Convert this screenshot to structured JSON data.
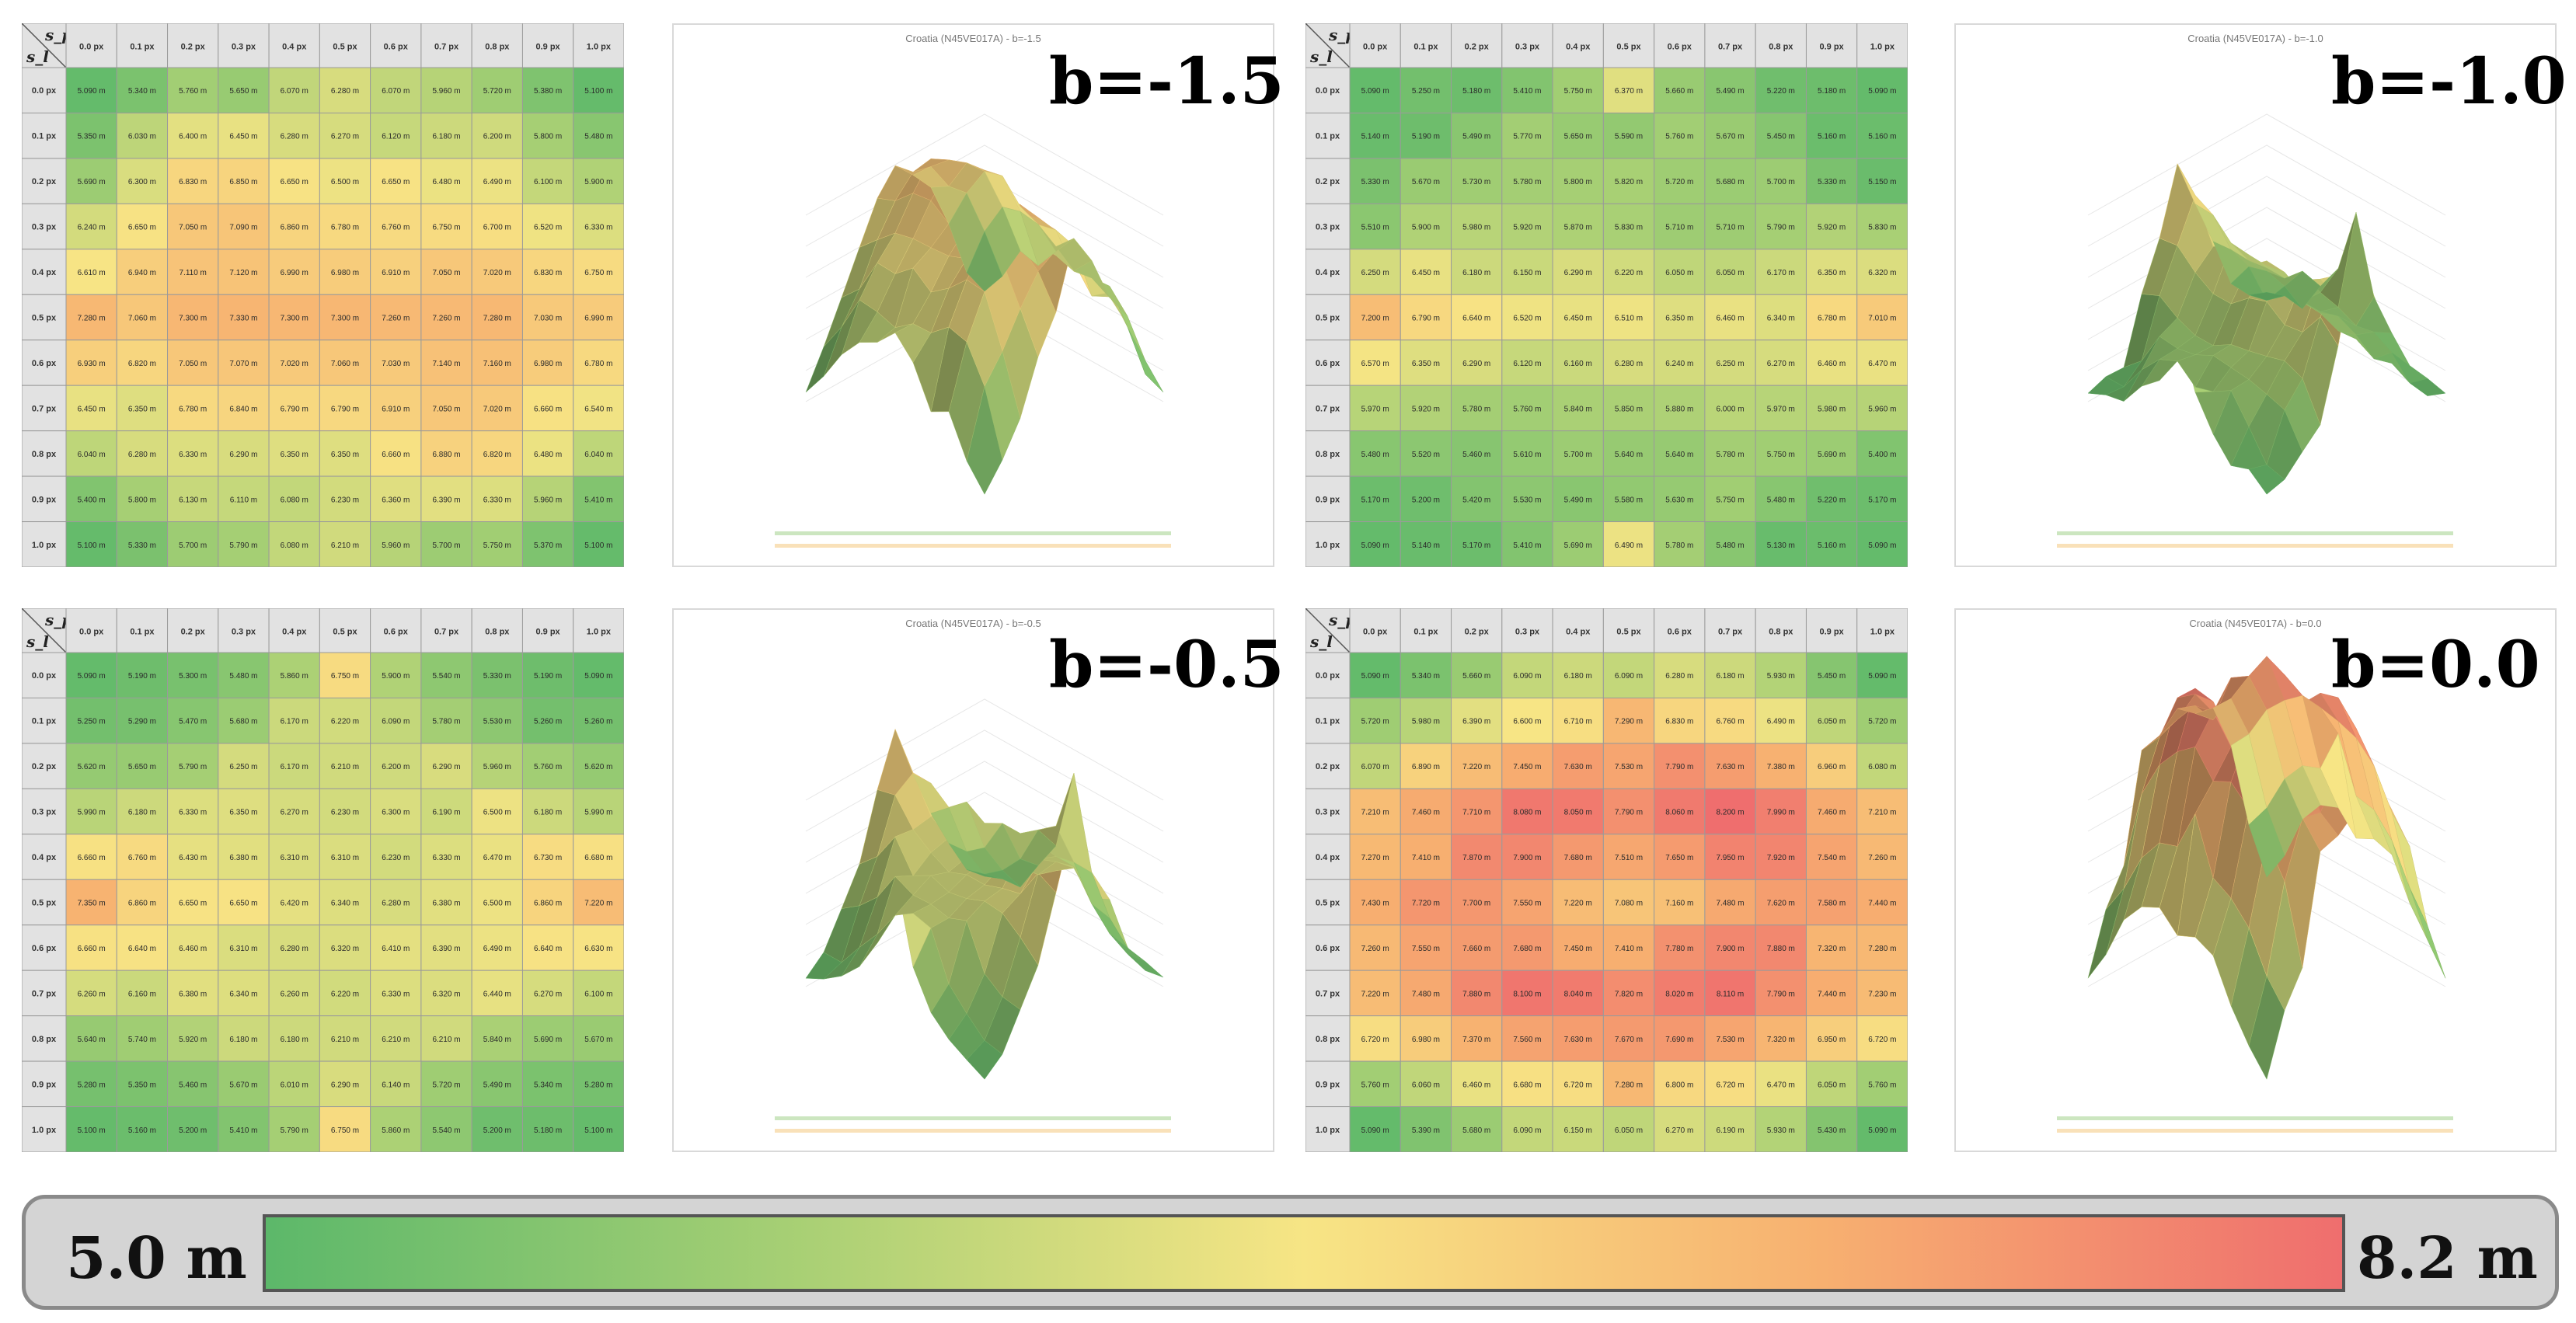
{
  "row_header_symbol": "s_p",
  "col_header_symbol": "s_l",
  "axis_labels": [
    "0.0 px",
    "0.1 px",
    "0.2 px",
    "0.3 px",
    "0.4 px",
    "0.5 px",
    "0.6 px",
    "0.7 px",
    "0.8 px",
    "0.9 px",
    "1.0 px"
  ],
  "legend": {
    "min_label": "5.0 m",
    "max_label": "8.2 m",
    "min_value": 5.0,
    "max_value": 8.2,
    "colors": [
      "#5cb86a",
      "#f7e585",
      "#ef6e6e"
    ]
  },
  "chart_data": [
    {
      "type": "heatmap",
      "label": "b=-1.5",
      "surface_title": "Croatia (N45VE017A) - b=-1.5",
      "values": [
        [
          5.09,
          5.34,
          5.76,
          5.65,
          6.07,
          6.28,
          6.07,
          5.96,
          5.72,
          5.38,
          5.1
        ],
        [
          5.35,
          6.03,
          6.4,
          6.45,
          6.28,
          6.27,
          6.12,
          6.18,
          6.2,
          5.8,
          5.48
        ],
        [
          5.69,
          6.3,
          6.83,
          6.85,
          6.65,
          6.5,
          6.65,
          6.48,
          6.49,
          6.1,
          5.9
        ],
        [
          6.24,
          6.65,
          7.05,
          7.09,
          6.86,
          6.78,
          6.76,
          6.75,
          6.7,
          6.52,
          6.33
        ],
        [
          6.61,
          6.94,
          7.11,
          7.12,
          6.99,
          6.98,
          6.91,
          7.05,
          7.02,
          6.83,
          6.75
        ],
        [
          7.28,
          7.06,
          7.3,
          7.33,
          7.3,
          7.3,
          7.26,
          7.26,
          7.28,
          7.03,
          6.99
        ],
        [
          6.93,
          6.82,
          7.05,
          7.07,
          7.02,
          7.06,
          7.03,
          7.14,
          7.16,
          6.98,
          6.78
        ],
        [
          6.45,
          6.35,
          6.78,
          6.84,
          6.79,
          6.79,
          6.91,
          7.05,
          7.02,
          6.66,
          6.54
        ],
        [
          6.04,
          6.28,
          6.33,
          6.29,
          6.35,
          6.35,
          6.66,
          6.88,
          6.82,
          6.48,
          6.04
        ],
        [
          5.4,
          5.8,
          6.13,
          6.11,
          6.08,
          6.23,
          6.36,
          6.39,
          6.33,
          5.96,
          5.41
        ],
        [
          5.1,
          5.33,
          5.7,
          5.79,
          6.08,
          6.21,
          5.96,
          5.7,
          5.75,
          5.37,
          5.1
        ]
      ]
    },
    {
      "type": "heatmap",
      "label": "b=-1.0",
      "surface_title": "Croatia (N45VE017A) - b=-1.0",
      "values": [
        [
          5.09,
          5.25,
          5.18,
          5.41,
          5.75,
          6.37,
          5.66,
          5.49,
          5.22,
          5.18,
          5.09
        ],
        [
          5.14,
          5.19,
          5.49,
          5.77,
          5.65,
          5.59,
          5.76,
          5.67,
          5.45,
          5.16,
          5.16
        ],
        [
          5.33,
          5.67,
          5.73,
          5.78,
          5.8,
          5.82,
          5.72,
          5.68,
          5.7,
          5.33,
          5.15
        ],
        [
          5.51,
          5.9,
          5.98,
          5.92,
          5.87,
          5.83,
          5.71,
          5.71,
          5.79,
          5.92,
          5.83
        ],
        [
          6.25,
          6.45,
          6.18,
          6.15,
          6.29,
          6.22,
          6.05,
          6.05,
          6.17,
          6.35,
          6.32
        ],
        [
          7.2,
          6.79,
          6.64,
          6.52,
          6.45,
          6.51,
          6.35,
          6.46,
          6.34,
          6.78,
          7.01
        ],
        [
          6.57,
          6.35,
          6.29,
          6.12,
          6.16,
          6.28,
          6.24,
          6.25,
          6.27,
          6.46,
          6.47
        ],
        [
          5.97,
          5.92,
          5.78,
          5.76,
          5.84,
          5.85,
          5.88,
          6.0,
          5.97,
          5.98,
          5.96
        ],
        [
          5.48,
          5.52,
          5.46,
          5.61,
          5.7,
          5.64,
          5.64,
          5.78,
          5.75,
          5.69,
          5.4
        ],
        [
          5.17,
          5.2,
          5.42,
          5.53,
          5.49,
          5.58,
          5.63,
          5.75,
          5.48,
          5.22,
          5.17
        ],
        [
          5.09,
          5.14,
          5.17,
          5.41,
          5.69,
          6.49,
          5.78,
          5.48,
          5.13,
          5.16,
          5.09
        ]
      ]
    },
    {
      "type": "heatmap",
      "label": "b=-0.5",
      "surface_title": "Croatia (N45VE017A) - b=-0.5",
      "values": [
        [
          5.09,
          5.19,
          5.3,
          5.48,
          5.86,
          6.75,
          5.9,
          5.54,
          5.33,
          5.19,
          5.09
        ],
        [
          5.25,
          5.29,
          5.47,
          5.68,
          6.17,
          6.22,
          6.09,
          5.78,
          5.53,
          5.26,
          5.26
        ],
        [
          5.62,
          5.65,
          5.79,
          6.25,
          6.17,
          6.21,
          6.2,
          6.29,
          5.96,
          5.76,
          5.62
        ],
        [
          5.99,
          6.18,
          6.33,
          6.35,
          6.27,
          6.23,
          6.3,
          6.19,
          6.5,
          6.18,
          5.99
        ],
        [
          6.66,
          6.76,
          6.43,
          6.38,
          6.31,
          6.31,
          6.23,
          6.33,
          6.47,
          6.73,
          6.68
        ],
        [
          7.35,
          6.86,
          6.65,
          6.65,
          6.42,
          6.34,
          6.28,
          6.38,
          6.5,
          6.86,
          7.22
        ],
        [
          6.66,
          6.64,
          6.46,
          6.31,
          6.28,
          6.32,
          6.41,
          6.39,
          6.49,
          6.64,
          6.63
        ],
        [
          6.26,
          6.16,
          6.38,
          6.34,
          6.26,
          6.22,
          6.33,
          6.32,
          6.44,
          6.27,
          6.1
        ],
        [
          5.64,
          5.74,
          5.92,
          6.18,
          6.18,
          6.21,
          6.21,
          6.21,
          5.84,
          5.69,
          5.67
        ],
        [
          5.28,
          5.35,
          5.46,
          5.67,
          6.01,
          6.29,
          6.14,
          5.72,
          5.49,
          5.34,
          5.28
        ],
        [
          5.1,
          5.16,
          5.2,
          5.41,
          5.79,
          6.75,
          5.86,
          5.54,
          5.2,
          5.18,
          5.1
        ]
      ]
    },
    {
      "type": "heatmap",
      "label": "b=0.0",
      "surface_title": "Croatia (N45VE017A) - b=0.0",
      "values": [
        [
          5.09,
          5.34,
          5.66,
          6.09,
          6.18,
          6.09,
          6.28,
          6.18,
          5.93,
          5.45,
          5.09
        ],
        [
          5.72,
          5.98,
          6.39,
          6.6,
          6.71,
          7.29,
          6.83,
          6.76,
          6.49,
          6.05,
          5.72
        ],
        [
          6.07,
          6.89,
          7.22,
          7.45,
          7.63,
          7.53,
          7.79,
          7.63,
          7.38,
          6.96,
          6.08
        ],
        [
          7.21,
          7.46,
          7.71,
          8.08,
          8.05,
          7.79,
          8.06,
          8.2,
          7.99,
          7.46,
          7.21
        ],
        [
          7.27,
          7.41,
          7.87,
          7.9,
          7.68,
          7.51,
          7.65,
          7.95,
          7.92,
          7.54,
          7.26
        ],
        [
          7.43,
          7.72,
          7.7,
          7.55,
          7.22,
          7.08,
          7.16,
          7.48,
          7.62,
          7.58,
          7.44
        ],
        [
          7.26,
          7.55,
          7.66,
          7.68,
          7.45,
          7.41,
          7.78,
          7.9,
          7.88,
          7.32,
          7.28
        ],
        [
          7.22,
          7.48,
          7.88,
          8.1,
          8.04,
          7.82,
          8.02,
          8.11,
          7.79,
          7.44,
          7.23
        ],
        [
          6.72,
          6.98,
          7.37,
          7.56,
          7.63,
          7.67,
          7.69,
          7.53,
          7.32,
          6.95,
          6.72
        ],
        [
          5.76,
          6.06,
          6.46,
          6.68,
          6.72,
          7.28,
          6.8,
          6.72,
          6.47,
          6.05,
          5.76
        ],
        [
          5.09,
          5.39,
          5.68,
          6.09,
          6.15,
          6.05,
          6.27,
          6.19,
          5.93,
          5.43,
          5.09
        ]
      ]
    }
  ]
}
